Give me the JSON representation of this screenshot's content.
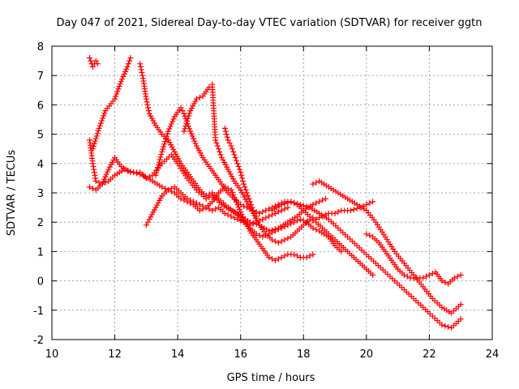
{
  "chart_data": {
    "type": "scatter",
    "title": "Day 047 of 2021, Sidereal Day-to-day VTEC variation (SDTVAR) for receiver ggtn",
    "xlabel": "GPS time / hours",
    "ylabel": "SDTVAR / TECUs",
    "xlim": [
      10,
      24
    ],
    "ylim": [
      -2,
      8
    ],
    "x_ticks": [
      "10",
      "12",
      "14",
      "16",
      "18",
      "20",
      "22",
      "24"
    ],
    "y_ticks": [
      "-2",
      "-1",
      "0",
      "1",
      "2",
      "3",
      "4",
      "5",
      "6",
      "7",
      "8"
    ],
    "grid": true,
    "marker": "+",
    "color": "#ff0000",
    "series": [
      {
        "name": "s1",
        "x": [
          11.2,
          11.3,
          11.4,
          11.45
        ],
        "y": [
          7.6,
          7.3,
          7.5,
          7.4
        ]
      },
      {
        "name": "s2",
        "x": [
          11.3,
          11.5,
          11.7,
          12.0,
          12.2,
          12.4,
          12.5
        ],
        "y": [
          4.5,
          5.2,
          5.8,
          6.2,
          6.8,
          7.3,
          7.6
        ]
      },
      {
        "name": "s3",
        "x": [
          11.2,
          11.3,
          11.4,
          11.6,
          11.8,
          12.0,
          12.2,
          12.5,
          12.8,
          13.0,
          13.2,
          13.5,
          13.8,
          14.0,
          14.3,
          14.6,
          14.9,
          15.1,
          15.4,
          15.7,
          16.0,
          16.3,
          16.6,
          16.9,
          17.2,
          17.5,
          17.8,
          18.0,
          18.3,
          18.5,
          18.7
        ],
        "y": [
          4.8,
          4.0,
          3.4,
          3.3,
          3.8,
          4.2,
          3.9,
          3.7,
          3.7,
          3.5,
          3.6,
          4.0,
          4.3,
          4.0,
          3.5,
          3.1,
          2.8,
          2.9,
          2.6,
          2.4,
          2.2,
          2.0,
          1.9,
          1.7,
          1.8,
          2.0,
          2.2,
          2.4,
          2.6,
          2.7,
          2.8
        ]
      },
      {
        "name": "s4",
        "x": [
          11.2,
          11.4,
          11.6,
          11.8,
          12.0,
          12.3,
          12.6,
          12.9,
          13.2,
          13.5,
          13.7,
          13.9,
          14.1,
          14.3,
          14.5,
          14.7,
          14.9,
          15.1,
          15.3,
          15.5,
          15.7,
          15.9,
          16.1,
          16.3,
          16.5,
          16.7,
          16.9,
          17.1,
          17.3,
          17.5
        ],
        "y": [
          3.2,
          3.1,
          3.3,
          3.4,
          3.6,
          3.8,
          3.7,
          3.6,
          3.4,
          3.2,
          3.1,
          3.2,
          3.0,
          2.8,
          2.7,
          2.6,
          2.5,
          2.4,
          2.5,
          2.3,
          2.2,
          2.1,
          2.0,
          1.9,
          2.0,
          2.1,
          2.2,
          2.3,
          2.4,
          2.5
        ]
      },
      {
        "name": "s5",
        "x": [
          12.8,
          12.9,
          13.0,
          13.1,
          13.3,
          13.5,
          13.7,
          13.9,
          14.1,
          14.3,
          14.5,
          14.7,
          14.9,
          15.1,
          15.3,
          15.6,
          15.9,
          16.1,
          16.3,
          16.5,
          16.7,
          16.9,
          17.1,
          17.3,
          17.5,
          17.7,
          17.9,
          18.1,
          18.3,
          18.5,
          18.8,
          19.0,
          19.2
        ],
        "y": [
          7.4,
          6.9,
          6.2,
          5.7,
          5.3,
          5.0,
          4.8,
          4.4,
          4.0,
          3.7,
          3.4,
          3.1,
          2.9,
          3.0,
          2.8,
          2.5,
          2.3,
          2.0,
          1.8,
          1.6,
          1.5,
          1.6,
          1.7,
          1.8,
          1.9,
          2.0,
          2.1,
          2.0,
          1.8,
          1.7,
          1.5,
          1.2,
          1.0
        ]
      },
      {
        "name": "s6",
        "x": [
          13.0,
          13.1,
          13.3,
          13.5,
          13.7,
          13.9,
          14.1,
          14.3,
          14.5,
          14.7,
          14.9,
          15.1,
          15.3,
          15.5,
          15.7,
          15.9,
          16.1,
          16.3,
          16.5,
          16.7,
          16.9,
          17.1,
          17.3,
          17.5,
          17.7,
          17.9,
          18.1,
          18.3
        ],
        "y": [
          1.9,
          2.1,
          2.5,
          2.9,
          3.1,
          3.0,
          2.8,
          2.7,
          2.6,
          2.4,
          2.5,
          2.7,
          3.0,
          3.2,
          3.1,
          2.6,
          2.1,
          1.7,
          1.4,
          1.1,
          0.8,
          0.7,
          0.8,
          0.9,
          0.9,
          0.8,
          0.8,
          0.9
        ]
      },
      {
        "name": "s7",
        "x": [
          13.3,
          13.5,
          13.7,
          13.9,
          14.1,
          14.2,
          14.4,
          14.6,
          14.8,
          15.0,
          15.2,
          15.4,
          15.6,
          15.8,
          16.0,
          16.2,
          16.4,
          16.6,
          16.8,
          17.0,
          17.2,
          17.4,
          17.6,
          17.8,
          18.0,
          18.2,
          18.4,
          18.6,
          18.8,
          19.0,
          19.2,
          19.5,
          19.8,
          20.0,
          20.2
        ],
        "y": [
          3.6,
          4.4,
          5.1,
          5.6,
          5.9,
          5.7,
          5.1,
          4.6,
          4.2,
          3.9,
          3.6,
          3.3,
          3.0,
          2.8,
          2.6,
          2.5,
          2.4,
          2.3,
          2.4,
          2.5,
          2.6,
          2.7,
          2.7,
          2.6,
          2.4,
          2.2,
          2.1,
          2.2,
          2.3,
          2.3,
          2.4,
          2.4,
          2.5,
          2.6,
          2.7
        ]
      },
      {
        "name": "s8",
        "x": [
          14.2,
          14.4,
          14.6,
          14.8,
          15.0,
          15.1,
          15.2,
          15.3,
          15.4,
          15.6,
          15.8,
          16.0,
          16.2,
          16.4,
          16.6,
          16.8,
          17.0,
          17.2,
          17.4,
          17.6,
          17.8,
          18.0,
          18.2,
          18.4,
          18.6,
          18.8,
          19.0,
          19.2,
          19.4,
          19.6,
          19.8,
          20.0,
          20.2
        ],
        "y": [
          5.1,
          5.8,
          6.2,
          6.3,
          6.6,
          6.7,
          4.8,
          4.5,
          4.2,
          3.8,
          3.4,
          3.1,
          2.7,
          2.3,
          1.9,
          1.6,
          1.4,
          1.3,
          1.4,
          1.5,
          1.7,
          1.9,
          2.1,
          2.0,
          1.8,
          1.6,
          1.4,
          1.2,
          1.0,
          0.8,
          0.6,
          0.4,
          0.2
        ]
      },
      {
        "name": "s9",
        "x": [
          15.5,
          15.6,
          15.7,
          15.8,
          15.9,
          16.0,
          16.1,
          16.2,
          16.3,
          16.4,
          16.5
        ],
        "y": [
          5.2,
          4.8,
          4.6,
          4.3,
          4.0,
          3.7,
          3.3,
          3.0,
          2.7,
          2.4,
          2.2
        ]
      },
      {
        "name": "s10",
        "x": [
          17.0,
          17.3,
          17.6,
          17.9,
          18.2,
          18.5,
          18.8,
          19.1,
          19.4,
          19.7,
          20.0,
          20.3,
          20.6,
          20.9,
          21.2,
          21.5,
          21.8,
          22.1,
          22.4,
          22.7,
          23.0
        ],
        "y": [
          2.4,
          2.6,
          2.7,
          2.6,
          2.5,
          2.3,
          2.1,
          1.8,
          1.5,
          1.2,
          0.9,
          0.6,
          0.3,
          0.0,
          -0.3,
          -0.6,
          -0.9,
          -1.2,
          -1.5,
          -1.6,
          -1.3
        ]
      },
      {
        "name": "s11",
        "x": [
          18.3,
          18.5,
          18.8,
          19.1,
          19.4,
          19.7,
          20.0,
          20.3,
          20.6,
          20.9,
          21.2,
          21.5,
          21.8,
          22.1,
          22.4,
          22.7,
          23.0
        ],
        "y": [
          3.3,
          3.4,
          3.2,
          3.0,
          2.8,
          2.6,
          2.4,
          2.0,
          1.5,
          1.0,
          0.6,
          0.2,
          -0.2,
          -0.6,
          -0.9,
          -1.1,
          -0.8
        ]
      },
      {
        "name": "s12",
        "x": [
          20.0,
          20.2,
          20.4,
          20.6,
          20.8,
          21.0,
          21.2,
          21.4,
          21.6,
          21.8,
          22.0,
          22.2,
          22.4,
          22.6,
          22.8,
          23.0
        ],
        "y": [
          1.6,
          1.5,
          1.3,
          1.0,
          0.7,
          0.4,
          0.2,
          0.1,
          0.1,
          0.1,
          0.2,
          0.3,
          0.0,
          -0.1,
          0.1,
          0.2
        ]
      }
    ]
  }
}
